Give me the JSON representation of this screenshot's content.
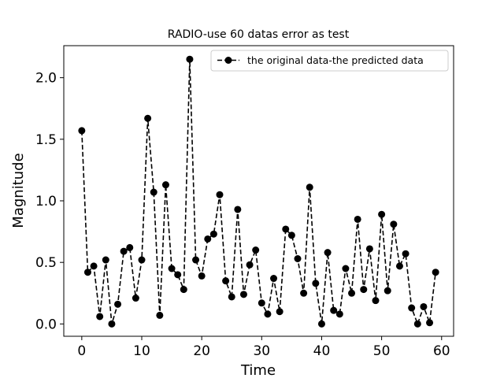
{
  "chart_data": {
    "type": "line",
    "title": "RADIO-use 60 datas error as test",
    "xlabel": "Time",
    "ylabel": "Magnitude",
    "xlim": [
      -3,
      62
    ],
    "ylim": [
      -0.1,
      2.26
    ],
    "xticks": [
      0,
      10,
      20,
      30,
      40,
      50,
      60
    ],
    "xtick_labels": [
      "0",
      "10",
      "20",
      "30",
      "40",
      "50",
      "60"
    ],
    "yticks": [
      0.0,
      0.5,
      1.0,
      1.5,
      2.0
    ],
    "ytick_labels": [
      "0.0",
      "0.5",
      "1.0",
      "1.5",
      "2.0"
    ],
    "grid": false,
    "legend_position": "top-right",
    "series": [
      {
        "name": "the original data-the predicted data",
        "color": "#000000",
        "line_style": "dashed",
        "marker": "circle",
        "x": [
          0,
          1,
          2,
          3,
          4,
          5,
          6,
          7,
          8,
          9,
          10,
          11,
          12,
          13,
          14,
          15,
          16,
          17,
          18,
          19,
          20,
          21,
          22,
          23,
          24,
          25,
          26,
          27,
          28,
          29,
          30,
          31,
          32,
          33,
          34,
          35,
          36,
          37,
          38,
          39,
          40,
          41,
          42,
          43,
          44,
          45,
          46,
          47,
          48,
          49,
          50,
          51,
          52,
          53,
          54,
          55,
          56,
          57,
          58,
          59
        ],
        "y": [
          1.57,
          0.42,
          0.47,
          0.06,
          0.52,
          0.0,
          0.16,
          0.59,
          0.62,
          0.21,
          0.52,
          1.67,
          1.07,
          0.07,
          1.13,
          0.45,
          0.4,
          0.28,
          2.15,
          0.52,
          0.39,
          0.69,
          0.73,
          1.05,
          0.35,
          0.22,
          0.93,
          0.24,
          0.48,
          0.6,
          0.17,
          0.08,
          0.37,
          0.1,
          0.77,
          0.72,
          0.53,
          0.25,
          1.11,
          0.33,
          0.0,
          0.58,
          0.11,
          0.08,
          0.45,
          0.25,
          0.85,
          0.28,
          0.61,
          0.19,
          0.89,
          0.27,
          0.81,
          0.47,
          0.57,
          0.13,
          0.0,
          0.14,
          0.01,
          0.42
        ]
      }
    ]
  }
}
